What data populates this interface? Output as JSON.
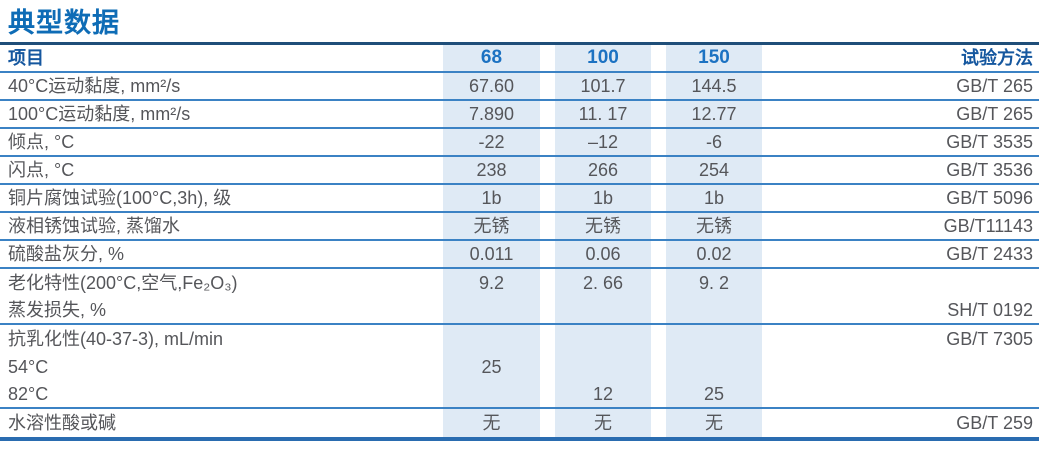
{
  "title": "典型数据",
  "colors": {
    "title_blue": "#0e6cb6",
    "header_blue": "#15579f",
    "grade_blue": "#1c72c2",
    "body_gray": "#55565a",
    "stripe": "#dfeaf5",
    "line_blue": "#3b82c4",
    "rule_navy": "#1f4e79",
    "bottom_blue": "#2a6cb0"
  },
  "table": {
    "header": {
      "item": "项目",
      "c68": "68",
      "c100": "100",
      "c150": "150",
      "method": "试验方法"
    },
    "rows": [
      {
        "label": "40°C运动黏度, mm²/s",
        "c68": "67.60",
        "c100": "101.7",
        "c150": "144.5",
        "method": "GB/T 265"
      },
      {
        "label": "100°C运动黏度, mm²/s",
        "c68": "7.890",
        "c100": "11. 17",
        "c150": "12.77",
        "method": "GB/T 265"
      },
      {
        "label": "倾点, °C",
        "c68": "-22",
        "c100": "–12",
        "c150": "-6",
        "method": "GB/T 3535"
      },
      {
        "label": "闪点, °C",
        "c68": "238",
        "c100": "266",
        "c150": "254",
        "method": "GB/T 3536"
      },
      {
        "label": "铜片腐蚀试验(100°C,3h), 级",
        "c68": "1b",
        "c100": "1b",
        "c150": "1b",
        "method": "GB/T 5096"
      },
      {
        "label": "液相锈蚀试验, 蒸馏水",
        "c68": "无锈",
        "c100": "无锈",
        "c150": "无锈",
        "method": "GB/T11143"
      },
      {
        "label": "硫酸盐灰分, %",
        "c68": "0.011",
        "c100": "0.06",
        "c150": "0.02",
        "method": "GB/T 2433"
      },
      {
        "label": "老化特性(200°C,空气,Fe₂O₃)",
        "c68": "9.2",
        "c100": "2. 66",
        "c150": "9. 2",
        "method": ""
      },
      {
        "label": "蒸发损失, %",
        "c68": "",
        "c100": "",
        "c150": "",
        "method": "SH/T 0192"
      },
      {
        "label": "抗乳化性(40-37-3), mL/min",
        "c68": "",
        "c100": "",
        "c150": "",
        "method": "GB/T 7305"
      },
      {
        "label": "54°C",
        "c68": "25",
        "c100": "",
        "c150": "",
        "method": ""
      },
      {
        "label": "82°C",
        "c68": "",
        "c100": "12",
        "c150": "25",
        "method": ""
      },
      {
        "label": "水溶性酸或碱",
        "c68": "无",
        "c100": "无",
        "c150": "无",
        "method": "GB/T 259"
      }
    ]
  }
}
